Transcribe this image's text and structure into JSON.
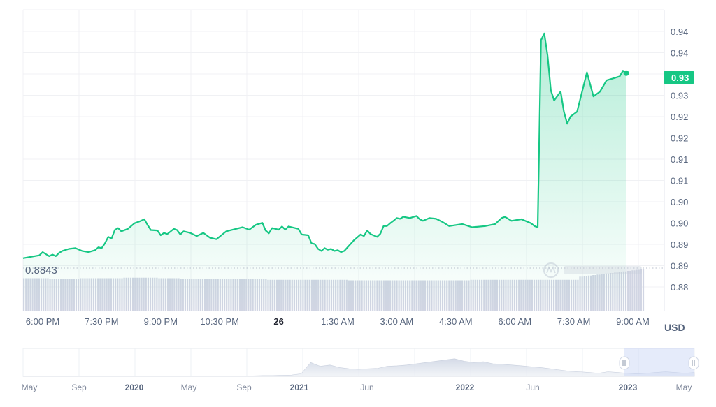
{
  "chart_data": {
    "type": "area",
    "currency_label": "USD",
    "reference_label": "0.8843",
    "current_price_label": "0.93",
    "y_ticks": [
      "0.94",
      "0.94",
      "0.93",
      "0.93",
      "0.92",
      "0.92",
      "0.91",
      "0.91",
      "0.90",
      "0.90",
      "0.89",
      "0.89",
      "0.88"
    ],
    "x_ticks": [
      "6:00 PM",
      "7:30 PM",
      "9:00 PM",
      "10:30 PM",
      "26",
      "1:30 AM",
      "3:00 AM",
      "4:30 AM",
      "6:00 AM",
      "7:30 AM",
      "9:00 AM"
    ],
    "bold_x_ticks": [
      "26"
    ],
    "grid": true,
    "colors": {
      "line": "#16c784",
      "fill": "#16c784",
      "volume": "#d1d5e3",
      "badge": "#16c784",
      "grid": "#f0f1f4",
      "text": "#58667e"
    },
    "price_series": [
      [
        "5:50 PM",
        0.8875
      ],
      [
        "5:55 PM",
        0.8882
      ],
      [
        "6:00 PM",
        0.889
      ],
      [
        "6:05 PM",
        0.8885
      ],
      [
        "6:10 PM",
        0.888
      ],
      [
        "6:15 PM",
        0.8884
      ],
      [
        "6:20 PM",
        0.888
      ],
      [
        "6:25 PM",
        0.8888
      ],
      [
        "6:30 PM",
        0.8893
      ],
      [
        "6:40 PM",
        0.8898
      ],
      [
        "6:50 PM",
        0.89
      ],
      [
        "7:00 PM",
        0.8893
      ],
      [
        "7:10 PM",
        0.889
      ],
      [
        "7:20 PM",
        0.8895
      ],
      [
        "7:25 PM",
        0.8902
      ],
      [
        "7:30 PM",
        0.89
      ],
      [
        "7:35 PM",
        0.8912
      ],
      [
        "7:40 PM",
        0.8928
      ],
      [
        "7:45 PM",
        0.8924
      ],
      [
        "7:50 PM",
        0.8945
      ],
      [
        "7:55 PM",
        0.895
      ],
      [
        "8:00 PM",
        0.8942
      ],
      [
        "8:10 PM",
        0.8948
      ],
      [
        "8:20 PM",
        0.8962
      ],
      [
        "8:30 PM",
        0.8968
      ],
      [
        "8:35 PM",
        0.8972
      ],
      [
        "8:40 PM",
        0.8958
      ],
      [
        "8:45 PM",
        0.8945
      ],
      [
        "8:55 PM",
        0.8944
      ],
      [
        "9:00 PM",
        0.8932
      ],
      [
        "9:05 PM",
        0.8938
      ],
      [
        "9:10 PM",
        0.8935
      ],
      [
        "9:20 PM",
        0.8948
      ],
      [
        "9:25 PM",
        0.8945
      ],
      [
        "9:30 PM",
        0.8934
      ],
      [
        "9:35 PM",
        0.8942
      ],
      [
        "9:45 PM",
        0.8938
      ],
      [
        "9:55 PM",
        0.893
      ],
      [
        "10:05 PM",
        0.8938
      ],
      [
        "10:15 PM",
        0.8926
      ],
      [
        "10:25 PM",
        0.8922
      ],
      [
        "10:40 PM",
        0.8942
      ],
      [
        "10:55 PM",
        0.8948
      ],
      [
        "11:05 PM",
        0.8952
      ],
      [
        "11:15 PM",
        0.8946
      ],
      [
        "11:25 PM",
        0.8958
      ],
      [
        "11:35 PM",
        0.8963
      ],
      [
        "11:40 PM",
        0.8944
      ],
      [
        "11:45 PM",
        0.8937
      ],
      [
        "11:50 PM",
        0.895
      ],
      [
        "11:55 PM",
        0.8948
      ],
      [
        "12:00 AM",
        0.8946
      ],
      [
        "12:05 AM",
        0.8954
      ],
      [
        "12:10 AM",
        0.8946
      ],
      [
        "12:15 AM",
        0.8954
      ],
      [
        "12:30 AM",
        0.8948
      ],
      [
        "12:35 AM",
        0.8934
      ],
      [
        "12:45 AM",
        0.8932
      ],
      [
        "12:50 AM",
        0.8912
      ],
      [
        "12:55 AM",
        0.891
      ],
      [
        "1:00 AM",
        0.8898
      ],
      [
        "1:05 AM",
        0.8893
      ],
      [
        "1:10 AM",
        0.89
      ],
      [
        "1:15 AM",
        0.8896
      ],
      [
        "1:20 AM",
        0.8898
      ],
      [
        "1:25 AM",
        0.8893
      ],
      [
        "1:30 AM",
        0.8895
      ],
      [
        "1:35 AM",
        0.889
      ],
      [
        "1:40 AM",
        0.8893
      ],
      [
        "1:55 AM",
        0.892
      ],
      [
        "2:05 AM",
        0.8934
      ],
      [
        "2:10 AM",
        0.893
      ],
      [
        "2:15 AM",
        0.8944
      ],
      [
        "2:20 AM",
        0.8935
      ],
      [
        "2:30 AM",
        0.8928
      ],
      [
        "2:35 AM",
        0.8936
      ],
      [
        "2:40 AM",
        0.8955
      ],
      [
        "2:45 AM",
        0.8955
      ],
      [
        "2:50 AM",
        0.8962
      ],
      [
        "2:55 AM",
        0.8968
      ],
      [
        "3:00 AM",
        0.8975
      ],
      [
        "3:05 AM",
        0.8973
      ],
      [
        "3:10 AM",
        0.8978
      ],
      [
        "3:20 AM",
        0.8975
      ],
      [
        "3:30 AM",
        0.898
      ],
      [
        "3:35 AM",
        0.8972
      ],
      [
        "3:40 AM",
        0.8968
      ],
      [
        "3:50 AM",
        0.8975
      ],
      [
        "4:00 AM",
        0.8973
      ],
      [
        "4:10 AM",
        0.8965
      ],
      [
        "4:20 AM",
        0.8955
      ],
      [
        "4:40 AM",
        0.896
      ],
      [
        "4:55 AM",
        0.8952
      ],
      [
        "5:15 AM",
        0.8955
      ],
      [
        "5:30 AM",
        0.896
      ],
      [
        "5:40 AM",
        0.8975
      ],
      [
        "5:45 AM",
        0.8978
      ],
      [
        "5:55 AM",
        0.8968
      ],
      [
        "6:10 AM",
        0.8972
      ],
      [
        "6:25 AM",
        0.8962
      ],
      [
        "6:30 AM",
        0.8955
      ],
      [
        "6:35 AM",
        0.8952
      ],
      [
        "6:40 AM",
        0.9418
      ],
      [
        "6:45 AM",
        0.9435
      ],
      [
        "6:50 AM",
        0.938
      ],
      [
        "6:55 AM",
        0.9293
      ],
      [
        "7:00 AM",
        0.9268
      ],
      [
        "7:10 AM",
        0.929
      ],
      [
        "7:15 AM",
        0.924
      ],
      [
        "7:20 AM",
        0.921
      ],
      [
        "7:25 AM",
        0.9228
      ],
      [
        "7:35 AM",
        0.924
      ],
      [
        "7:50 AM",
        0.9338
      ],
      [
        "8:00 AM",
        0.9278
      ],
      [
        "8:10 AM",
        0.929
      ],
      [
        "8:20 AM",
        0.9318
      ],
      [
        "8:30 AM",
        0.9323
      ],
      [
        "8:40 AM",
        0.9328
      ],
      [
        "8:45 AM",
        0.9342
      ],
      [
        "8:50 AM",
        0.9336
      ]
    ],
    "volume_levels": [
      0.62,
      0.62,
      0.62,
      0.62,
      0.62,
      0.62,
      0.62,
      0.62,
      0.62,
      0.62,
      0.62,
      0.62,
      0.61,
      0.61,
      0.61,
      0.61,
      0.61,
      0.61,
      0.61,
      0.61,
      0.61,
      0.61,
      0.61,
      0.61,
      0.61,
      0.61,
      0.62,
      0.62,
      0.62,
      0.62,
      0.62,
      0.62,
      0.62,
      0.62,
      0.62,
      0.62,
      0.62,
      0.62,
      0.62,
      0.62,
      0.62,
      0.62,
      0.62,
      0.62,
      0.62,
      0.62,
      0.63,
      0.63,
      0.63,
      0.63,
      0.63,
      0.63,
      0.63,
      0.63,
      0.63,
      0.63,
      0.63,
      0.63,
      0.63,
      0.63,
      0.63,
      0.63,
      0.62,
      0.62,
      0.62,
      0.62,
      0.62,
      0.62,
      0.62,
      0.62,
      0.62,
      0.62,
      0.61,
      0.61,
      0.61,
      0.61,
      0.61,
      0.61,
      0.61,
      0.61,
      0.61,
      0.61,
      0.6,
      0.6,
      0.6,
      0.6,
      0.6,
      0.6,
      0.6,
      0.6,
      0.6,
      0.6,
      0.6,
      0.6,
      0.6,
      0.6,
      0.6,
      0.6,
      0.6,
      0.6,
      0.6,
      0.6,
      0.6,
      0.6,
      0.6,
      0.6,
      0.6,
      0.6,
      0.6,
      0.6,
      0.6,
      0.6,
      0.59,
      0.59,
      0.59,
      0.59,
      0.59,
      0.59,
      0.59,
      0.59,
      0.59,
      0.59,
      0.59,
      0.59,
      0.59,
      0.59,
      0.59,
      0.59,
      0.59,
      0.59,
      0.59,
      0.59,
      0.59,
      0.59,
      0.59,
      0.59,
      0.59,
      0.59,
      0.59,
      0.59,
      0.59,
      0.59,
      0.59,
      0.59,
      0.59,
      0.59,
      0.59,
      0.59,
      0.59,
      0.58,
      0.58,
      0.58,
      0.58,
      0.58,
      0.58,
      0.58,
      0.58,
      0.58,
      0.58,
      0.58,
      0.58,
      0.58,
      0.58,
      0.58,
      0.58,
      0.58,
      0.58,
      0.58,
      0.58,
      0.58,
      0.58,
      0.58,
      0.58,
      0.58,
      0.58,
      0.58,
      0.58,
      0.58,
      0.58,
      0.58,
      0.58,
      0.58,
      0.58,
      0.58,
      0.58,
      0.58,
      0.58,
      0.58,
      0.58,
      0.58,
      0.58,
      0.58,
      0.58,
      0.58,
      0.58,
      0.58,
      0.58,
      0.58,
      0.58,
      0.58,
      0.58,
      0.58,
      0.58,
      0.58,
      0.58,
      0.59,
      0.59,
      0.59,
      0.59,
      0.59,
      0.59,
      0.59,
      0.59,
      0.59,
      0.59,
      0.59,
      0.59,
      0.59,
      0.59,
      0.59,
      0.59,
      0.59,
      0.59,
      0.59,
      0.59,
      0.59,
      0.59,
      0.59,
      0.59,
      0.59,
      0.59,
      0.59,
      0.59,
      0.59,
      0.59,
      0.59,
      0.59,
      0.59,
      0.59,
      0.59,
      0.59,
      0.59,
      0.59,
      0.59,
      0.59,
      0.59,
      0.59,
      0.59,
      0.59,
      0.59,
      0.59,
      0.59,
      0.59,
      0.59,
      0.59,
      0.65,
      0.65,
      0.66,
      0.66,
      0.67,
      0.67,
      0.68,
      0.68,
      0.69,
      0.69,
      0.7,
      0.7,
      0.71,
      0.71,
      0.72,
      0.72,
      0.73,
      0.73,
      0.74,
      0.74,
      0.75,
      0.75,
      0.76,
      0.76,
      0.77,
      0.77,
      0.78,
      0.78,
      0.79,
      0.79
    ],
    "overview_x_ticks": [
      "May",
      "Sep",
      "2020",
      "May",
      "Sep",
      "2021",
      "Jun",
      "2022",
      "Jun",
      "2023",
      "May"
    ],
    "overview_bold_ticks": [
      "2020",
      "2021",
      "2022",
      "2023"
    ],
    "overview_profile": [
      0,
      0,
      0,
      0,
      0,
      0,
      0,
      0,
      0,
      0,
      0,
      0,
      0,
      0,
      0,
      0,
      0,
      0,
      0,
      0,
      0,
      0,
      0,
      0,
      0.02,
      0.03,
      0.03,
      0.04,
      0.05,
      0.1,
      0.55,
      0.4,
      0.45,
      0.35,
      0.3,
      0.28,
      0.3,
      0.32,
      0.4,
      0.42,
      0.45,
      0.5,
      0.55,
      0.6,
      0.65,
      0.7,
      0.6,
      0.55,
      0.58,
      0.5,
      0.48,
      0.45,
      0.42,
      0.38,
      0.35,
      0.3,
      0.25,
      0.2,
      0.18,
      0.15,
      0.12,
      0.18,
      0.15,
      0.12,
      0.1,
      0.12,
      0.15,
      0.18,
      0.15,
      0.12,
      0.15
    ]
  }
}
